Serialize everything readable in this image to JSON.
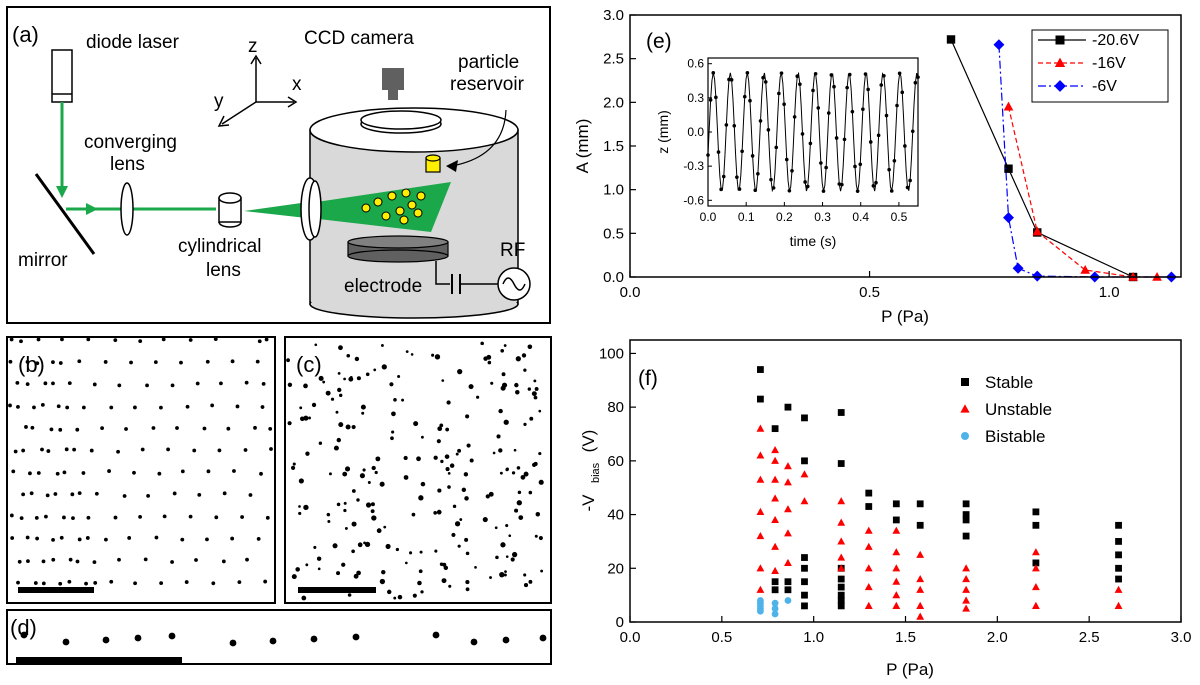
{
  "panel_a": {
    "label": "(a)",
    "diode_laser": "diode laser",
    "ccd_camera": "CCD camera",
    "axis_z": "z",
    "axis_x": "x",
    "axis_y": "y",
    "particle_reservoir_1": "particle",
    "particle_reservoir_2": "reservoir",
    "converging_lens_1": "converging",
    "converging_lens_2": "lens",
    "mirror": "mirror",
    "cylindrical_lens_1": "cylindrical",
    "cylindrical_lens_2": "lens",
    "electrode": "electrode",
    "rf": "RF",
    "colors": {
      "beam": "#1aa84a",
      "particle": "#ffee00",
      "chamber": "#d9d9d9"
    }
  },
  "panel_b": {
    "label": "(b)"
  },
  "panel_c": {
    "label": "(c)"
  },
  "panel_d": {
    "label": "(d)"
  },
  "panel_e": {
    "label": "(e)"
  },
  "panel_f": {
    "label": "(f)"
  },
  "chart_data": [
    {
      "id": "e-main",
      "type": "line",
      "xlabel": "P (Pa)",
      "ylabel": "A (mm)",
      "xlim": [
        0.0,
        1.15
      ],
      "ylim": [
        0.0,
        3.0
      ],
      "xticks": [
        "0.0",
        "0.5",
        "1.0"
      ],
      "yticks": [
        "0.0",
        "0.5",
        "1.0",
        "1.5",
        "2.0",
        "2.5",
        "3.0"
      ],
      "legend_position": "top-right",
      "series": [
        {
          "name": "-20.6V",
          "color": "#000000",
          "marker": "square",
          "line": "solid",
          "x": [
            0.67,
            0.79,
            0.85,
            1.05
          ],
          "y": [
            2.72,
            1.24,
            0.51,
            0.0
          ]
        },
        {
          "name": "-16V",
          "color": "#ff0000",
          "marker": "triangle",
          "line": "dashed",
          "x": [
            0.79,
            0.85,
            0.95,
            1.05,
            1.1
          ],
          "y": [
            1.95,
            0.52,
            0.08,
            0.0,
            0.0
          ]
        },
        {
          "name": "-6V",
          "color": "#0000ff",
          "marker": "diamond",
          "line": "dashdot",
          "x": [
            0.77,
            0.79,
            0.81,
            0.85,
            0.97,
            1.13
          ],
          "y": [
            2.66,
            0.68,
            0.1,
            0.01,
            0.0,
            0.0
          ]
        }
      ]
    },
    {
      "id": "e-inset",
      "type": "line",
      "xlabel": "time (s)",
      "ylabel": "z (mm)",
      "xlim": [
        0.0,
        0.55
      ],
      "ylim": [
        -0.65,
        0.65
      ],
      "xticks": [
        "0.0",
        "0.1",
        "0.2",
        "0.3",
        "0.4",
        "0.5"
      ],
      "yticks": [
        "-0.6",
        "-0.3",
        "0.0",
        "0.3",
        "0.6"
      ],
      "amplitude": 0.52,
      "frequency": 22.5
    },
    {
      "id": "f",
      "type": "scatter",
      "xlabel": "P (Pa)",
      "ylabel": "-V",
      "ylabel_sub": "bias",
      "ylabel_unit": "(V)",
      "xlim": [
        0.0,
        3.0
      ],
      "ylim": [
        0,
        105
      ],
      "xticks": [
        "0.0",
        "0.5",
        "1.0",
        "1.5",
        "2.0",
        "2.5",
        "3.0"
      ],
      "yticks": [
        "0",
        "20",
        "40",
        "60",
        "80",
        "100"
      ],
      "legend_position": "top-right",
      "series": [
        {
          "name": "Stable",
          "color": "#000000",
          "marker": "square",
          "points": [
            [
              0.71,
              94
            ],
            [
              0.71,
              83
            ],
            [
              0.79,
              72
            ],
            [
              0.79,
              15
            ],
            [
              0.79,
              12
            ],
            [
              0.86,
              80
            ],
            [
              0.86,
              15
            ],
            [
              0.86,
              12
            ],
            [
              0.95,
              76
            ],
            [
              0.95,
              60
            ],
            [
              0.95,
              24
            ],
            [
              0.95,
              20
            ],
            [
              0.95,
              15
            ],
            [
              0.95,
              10
            ],
            [
              0.95,
              6
            ],
            [
              1.15,
              78
            ],
            [
              1.15,
              59
            ],
            [
              1.15,
              20
            ],
            [
              1.15,
              16
            ],
            [
              1.15,
              13
            ],
            [
              1.15,
              10
            ],
            [
              1.15,
              8
            ],
            [
              1.15,
              6
            ],
            [
              1.3,
              48
            ],
            [
              1.3,
              43
            ],
            [
              1.45,
              44
            ],
            [
              1.45,
              38
            ],
            [
              1.58,
              44
            ],
            [
              1.58,
              36
            ],
            [
              1.83,
              44
            ],
            [
              1.83,
              40
            ],
            [
              1.83,
              38
            ],
            [
              1.83,
              32
            ],
            [
              2.21,
              41
            ],
            [
              2.21,
              36
            ],
            [
              2.21,
              22
            ],
            [
              2.66,
              36
            ],
            [
              2.66,
              30
            ],
            [
              2.66,
              25
            ],
            [
              2.66,
              20
            ],
            [
              2.66,
              16
            ]
          ]
        },
        {
          "name": "Unstable",
          "color": "#ff0000",
          "marker": "triangle",
          "points": [
            [
              0.71,
              72
            ],
            [
              0.71,
              62
            ],
            [
              0.71,
              53
            ],
            [
              0.71,
              41
            ],
            [
              0.71,
              32
            ],
            [
              0.71,
              20
            ],
            [
              0.71,
              12
            ],
            [
              0.79,
              64
            ],
            [
              0.79,
              60
            ],
            [
              0.79,
              53
            ],
            [
              0.79,
              46
            ],
            [
              0.79,
              38
            ],
            [
              0.79,
              28
            ],
            [
              0.79,
              19
            ],
            [
              0.86,
              58
            ],
            [
              0.86,
              52
            ],
            [
              0.86,
              42
            ],
            [
              0.86,
              33
            ],
            [
              0.86,
              22
            ],
            [
              0.95,
              55
            ],
            [
              0.95,
              45
            ],
            [
              1.15,
              45
            ],
            [
              1.15,
              37
            ],
            [
              1.15,
              30
            ],
            [
              1.15,
              24
            ],
            [
              1.15,
              20
            ],
            [
              1.3,
              34
            ],
            [
              1.3,
              28
            ],
            [
              1.3,
              20
            ],
            [
              1.3,
              13
            ],
            [
              1.3,
              6
            ],
            [
              1.45,
              34
            ],
            [
              1.45,
              26
            ],
            [
              1.45,
              20
            ],
            [
              1.45,
              15
            ],
            [
              1.45,
              10
            ],
            [
              1.45,
              6
            ],
            [
              1.58,
              25
            ],
            [
              1.58,
              16
            ],
            [
              1.58,
              12
            ],
            [
              1.58,
              6
            ],
            [
              1.58,
              2
            ],
            [
              1.83,
              20
            ],
            [
              1.83,
              16
            ],
            [
              1.83,
              12
            ],
            [
              1.83,
              8
            ],
            [
              1.83,
              5
            ],
            [
              2.21,
              26
            ],
            [
              2.21,
              20
            ],
            [
              2.21,
              13
            ],
            [
              2.21,
              6
            ],
            [
              2.66,
              12
            ],
            [
              2.66,
              6
            ]
          ]
        },
        {
          "name": "Bistable",
          "color": "#4fb3ea",
          "marker": "circle",
          "points": [
            [
              0.71,
              8
            ],
            [
              0.71,
              7
            ],
            [
              0.71,
              6
            ],
            [
              0.71,
              5
            ],
            [
              0.71,
              4
            ],
            [
              0.79,
              7
            ],
            [
              0.79,
              5
            ],
            [
              0.79,
              3
            ],
            [
              0.86,
              8
            ]
          ]
        }
      ]
    }
  ]
}
